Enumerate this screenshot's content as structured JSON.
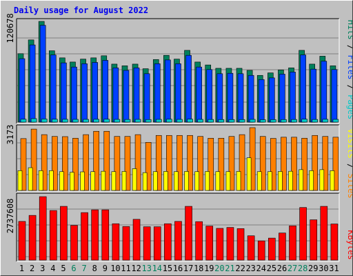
{
  "title": "Daily usage for August 2022",
  "colors": {
    "hits": "#00805c",
    "files": "#0040ff",
    "pages": "#00c8c8",
    "visits": "#ffff00",
    "sites": "#ff8000",
    "kbytes": "#ff0000",
    "weekend_day": "#00805c",
    "weekday": "#000000"
  },
  "chart_data": [
    {
      "type": "bar",
      "categories": [
        "1",
        "2",
        "3",
        "4",
        "5",
        "6",
        "7",
        "8",
        "9",
        "10",
        "11",
        "12",
        "13",
        "14",
        "15",
        "16",
        "17",
        "18",
        "19",
        "20",
        "21",
        "22",
        "23",
        "24",
        "25",
        "26",
        "27",
        "28",
        "29",
        "30",
        "31"
      ],
      "weekend_days": [
        "6",
        "7",
        "13",
        "14",
        "20",
        "21",
        "27",
        "28"
      ],
      "ymax_label": "120678",
      "ymax": 120678,
      "legend": [
        "Pages",
        "Files",
        "Hits"
      ],
      "series": [
        {
          "name": "Hits",
          "values": [
            82000,
            98500,
            120678,
            85500,
            77000,
            72000,
            75500,
            77000,
            79500,
            69500,
            67500,
            69500,
            64000,
            75000,
            80000,
            75500,
            86000,
            72000,
            68500,
            64500,
            64500,
            64500,
            62000,
            56000,
            59000,
            62500,
            65000,
            86000,
            69500,
            79000,
            67500
          ]
        },
        {
          "name": "Files",
          "values": [
            76000,
            92500,
            116000,
            80500,
            71000,
            66000,
            70000,
            71500,
            74000,
            65000,
            62000,
            65000,
            58000,
            70000,
            74500,
            70000,
            80000,
            66000,
            63000,
            58000,
            58500,
            58000,
            56000,
            51000,
            53000,
            57500,
            60000,
            80500,
            63500,
            73000,
            63000
          ]
        },
        {
          "name": "Pages",
          "values": [
            3500,
            4200,
            3800,
            3500,
            3400,
            3300,
            3300,
            3400,
            3500,
            3300,
            3200,
            3300,
            3100,
            3300,
            3500,
            3300,
            3600,
            3300,
            3200,
            3100,
            3100,
            3100,
            3300,
            2900,
            3000,
            3100,
            3200,
            3600,
            3200,
            3400,
            3300
          ]
        }
      ]
    },
    {
      "type": "bar",
      "categories": [
        "1",
        "2",
        "3",
        "4",
        "5",
        "6",
        "7",
        "8",
        "9",
        "10",
        "11",
        "12",
        "13",
        "14",
        "15",
        "16",
        "17",
        "18",
        "19",
        "20",
        "21",
        "22",
        "23",
        "24",
        "25",
        "26",
        "27",
        "28",
        "29",
        "30",
        "31"
      ],
      "ymax_label": "3173",
      "ymax": 3173,
      "legend": [
        "Sites",
        "Visits"
      ],
      "series": [
        {
          "name": "Sites",
          "values": [
            2620,
            3100,
            2820,
            2730,
            2720,
            2640,
            2820,
            2990,
            2990,
            2730,
            2730,
            2820,
            2430,
            2780,
            2780,
            2780,
            2780,
            2730,
            2640,
            2640,
            2730,
            2820,
            3173,
            2730,
            2630,
            2690,
            2690,
            2640,
            2780,
            2730,
            2690
          ]
        },
        {
          "name": "Visits",
          "values": [
            1000,
            1150,
            1000,
            1000,
            950,
            920,
            940,
            950,
            970,
            950,
            960,
            1100,
            900,
            950,
            960,
            950,
            960,
            950,
            960,
            950,
            950,
            960,
            1650,
            950,
            950,
            960,
            970,
            1050,
            1000,
            1050,
            1000
          ]
        }
      ]
    },
    {
      "type": "bar",
      "categories": [
        "1",
        "2",
        "3",
        "4",
        "5",
        "6",
        "7",
        "8",
        "9",
        "10",
        "11",
        "12",
        "13",
        "14",
        "15",
        "16",
        "17",
        "18",
        "19",
        "20",
        "21",
        "22",
        "23",
        "24",
        "25",
        "26",
        "27",
        "28",
        "29",
        "30",
        "31"
      ],
      "ymax_label": "2737608",
      "ymax": 2737608,
      "legend": [
        "KBytes"
      ],
      "series": [
        {
          "name": "KBytes",
          "values": [
            1670000,
            1930000,
            2737608,
            2140000,
            2320000,
            1500000,
            2050000,
            2170000,
            2170000,
            1570000,
            1450000,
            1760000,
            1440000,
            1440000,
            1570000,
            1670000,
            2320000,
            1660000,
            1470000,
            1370000,
            1410000,
            1360000,
            1050000,
            830000,
            950000,
            1170000,
            1480000,
            2270000,
            1740000,
            2320000,
            1560000
          ]
        }
      ]
    }
  ]
}
